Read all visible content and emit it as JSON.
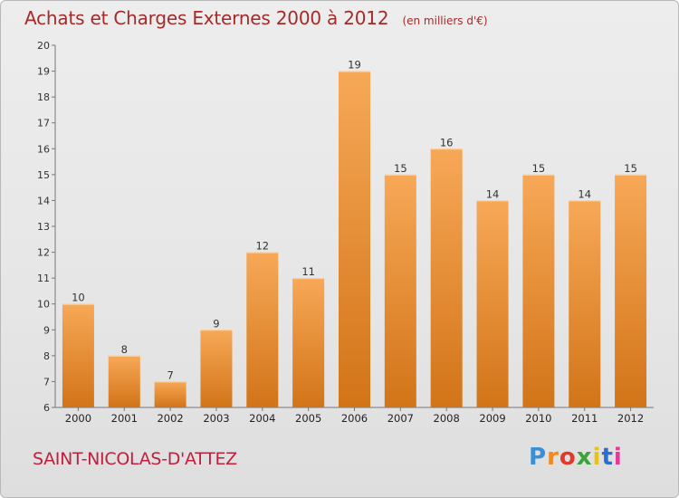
{
  "header": {
    "title": "Achats et Charges Externes 2000 à 2012",
    "subtitle": "(en milliers d'€)"
  },
  "footer": {
    "commune": "SAINT-NICOLAS-D'ATTEZ",
    "logo_letters": [
      "P",
      "r",
      "o",
      "x",
      "i",
      "t",
      "i"
    ],
    "logo_colors": [
      "#3a8fd6",
      "#f08a1c",
      "#e03a2a",
      "#3aa33a",
      "#e8c21a",
      "#2a6fd0",
      "#e03a9a"
    ]
  },
  "colors": {
    "bar_top": "#f7a857",
    "bar_bottom": "#d27418",
    "title": "#a52a2a",
    "commune": "#c0203c"
  },
  "chart_data": {
    "type": "bar",
    "categories": [
      "2000",
      "2001",
      "2002",
      "2003",
      "2004",
      "2005",
      "2006",
      "2007",
      "2008",
      "2009",
      "2010",
      "2011",
      "2012"
    ],
    "values": [
      10,
      8,
      7,
      9,
      12,
      11,
      19,
      15,
      16,
      14,
      15,
      14,
      15
    ],
    "ylim": [
      6,
      20
    ],
    "yticks": [
      6,
      7,
      8,
      9,
      10,
      11,
      12,
      13,
      14,
      15,
      16,
      17,
      18,
      19,
      20
    ],
    "grid": false,
    "xlabel": "",
    "ylabel": ""
  }
}
